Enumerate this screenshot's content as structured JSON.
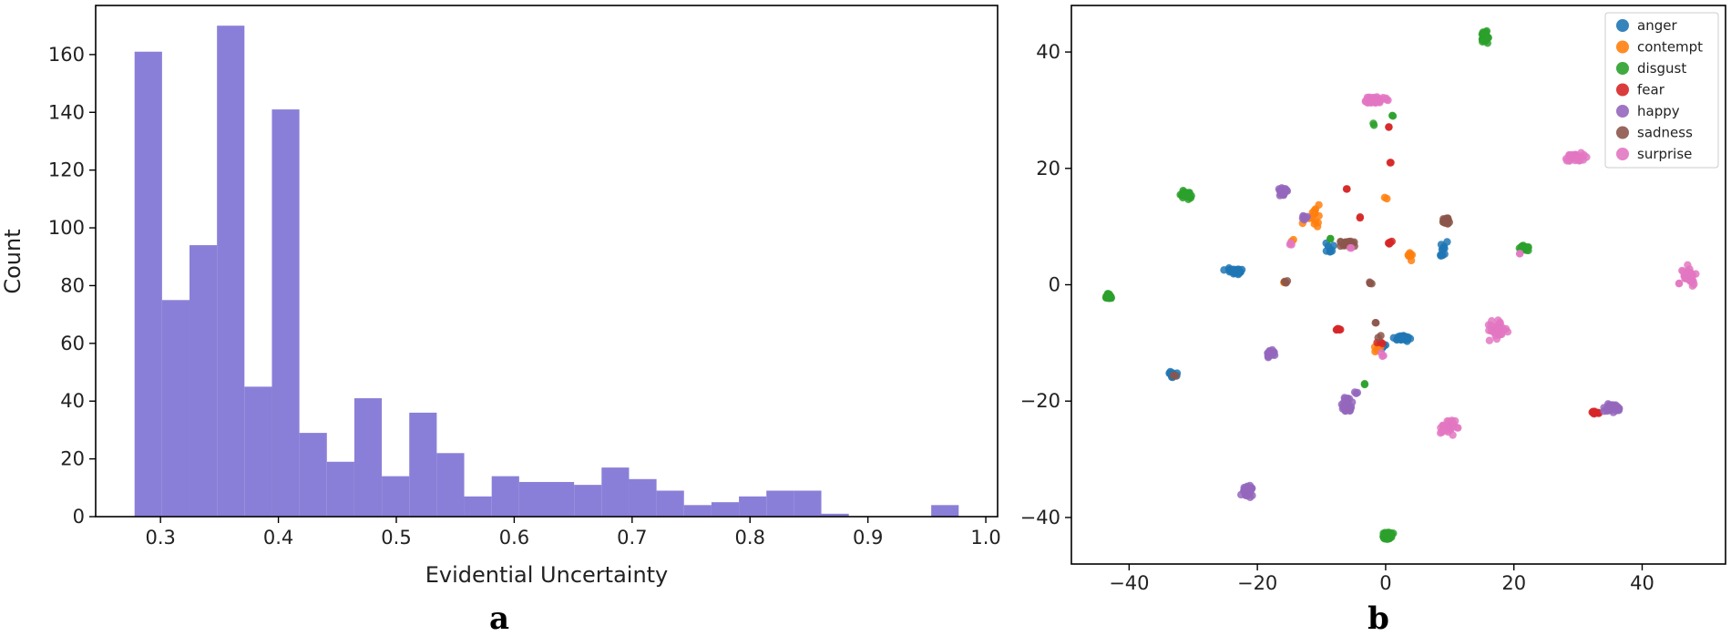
{
  "chart_data": [
    {
      "type": "bar",
      "panel_label": "a",
      "xlabel": "Evidential Uncertainty",
      "ylabel": "Count",
      "bar_color": "#8a7fd8",
      "bin_edges": [
        0.278,
        0.3013,
        0.3246,
        0.3479,
        0.3712,
        0.3945,
        0.4178,
        0.4411,
        0.4644,
        0.4877,
        0.511,
        0.5343,
        0.5576,
        0.5809,
        0.6042,
        0.6275,
        0.6508,
        0.6741,
        0.6974,
        0.7207,
        0.744,
        0.7673,
        0.7906,
        0.8139,
        0.8372,
        0.8605,
        0.8838,
        0.9071,
        0.9304,
        0.9537,
        0.977
      ],
      "values": [
        161,
        75,
        94,
        170,
        45,
        141,
        29,
        19,
        41,
        14,
        36,
        22,
        7,
        14,
        12,
        12,
        11,
        17,
        13,
        9,
        4,
        5,
        7,
        9,
        9,
        1,
        0,
        0,
        0,
        4
      ],
      "xlim": [
        0.245,
        1.01
      ],
      "ylim": [
        0,
        177
      ],
      "xticks": [
        0.3,
        0.4,
        0.5,
        0.6,
        0.7,
        0.8,
        0.9,
        1.0
      ],
      "xtick_labels": [
        "0.3",
        "0.4",
        "0.5",
        "0.6",
        "0.7",
        "0.8",
        "0.9",
        "1.0"
      ],
      "yticks": [
        0,
        20,
        40,
        60,
        80,
        100,
        120,
        140,
        160
      ],
      "ytick_labels": [
        "0",
        "20",
        "40",
        "60",
        "80",
        "100",
        "120",
        "140",
        "160"
      ]
    },
    {
      "type": "scatter",
      "panel_label": "b",
      "xlim": [
        -49,
        53
      ],
      "ylim": [
        -48,
        48
      ],
      "xticks": [
        -40,
        -20,
        0,
        20,
        40
      ],
      "xtick_labels": [
        "−40",
        "−20",
        "0",
        "20",
        "40"
      ],
      "yticks": [
        -40,
        -20,
        0,
        20,
        40
      ],
      "ytick_labels": [
        "−40",
        "−20",
        "0",
        "20",
        "40"
      ],
      "legend_position": "top-right",
      "series": [
        {
          "name": "anger",
          "color": "#1f77b4",
          "clusters": [
            [
              -23.5,
              2.3,
              1.3,
              0.5,
              40
            ],
            [
              -33.2,
              -15.4,
              0.6,
              0.5,
              14
            ],
            [
              2.5,
              -9.2,
              1.3,
              0.4,
              30
            ],
            [
              9,
              6.3,
              0.7,
              1.2,
              8
            ],
            [
              -8.5,
              6.5,
              0.7,
              1.4,
              8
            ],
            [
              8.8,
              5,
              0.3,
              0.3,
              3
            ],
            [
              -0.5,
              -10.4,
              0.6,
              0.6,
              5
            ]
          ]
        },
        {
          "name": "contempt",
          "color": "#ff7f0e",
          "clusters": [
            [
              -11,
              11.5,
              1.5,
              1.8,
              14
            ],
            [
              3.7,
              5,
              0.6,
              1,
              8
            ],
            [
              -1.2,
              -10.8,
              0.8,
              0.6,
              6
            ],
            [
              0,
              15,
              0.3,
              0.3,
              2
            ],
            [
              -16,
              0.5,
              0.3,
              0.3,
              2
            ],
            [
              -14.5,
              7.5,
              0.3,
              0.3,
              2
            ]
          ]
        },
        {
          "name": "disgust",
          "color": "#2ca02c",
          "clusters": [
            [
              15.5,
              42.5,
              0.5,
              0.9,
              40
            ],
            [
              -31,
              15.4,
              0.8,
              0.6,
              35
            ],
            [
              -43.2,
              -2,
              0.5,
              0.4,
              35
            ],
            [
              21.5,
              6.3,
              0.7,
              0.4,
              30
            ],
            [
              0.2,
              -43.2,
              0.8,
              0.6,
              40
            ],
            [
              -2,
              27.5,
              0.3,
              0.3,
              2
            ],
            [
              -8.5,
              8,
              0.3,
              0.3,
              2
            ],
            [
              -3.5,
              -17,
              0.3,
              0.3,
              2
            ],
            [
              1,
              29,
              0.3,
              0.3,
              2
            ]
          ]
        },
        {
          "name": "fear",
          "color": "#d62728",
          "clusters": [
            [
              0.5,
              27,
              0.2,
              0.2,
              2
            ],
            [
              0.8,
              21,
              0.2,
              0.2,
              2
            ],
            [
              -6,
              16.5,
              0.2,
              0.2,
              2
            ],
            [
              -4,
              11.5,
              0.2,
              0.2,
              2
            ],
            [
              0.5,
              7.2,
              0.6,
              0.3,
              6
            ],
            [
              -7.5,
              -7.8,
              0.5,
              0.3,
              6
            ],
            [
              33,
              -22,
              0.8,
              0.3,
              10
            ],
            [
              -1,
              -10,
              0.4,
              0.4,
              3
            ]
          ]
        },
        {
          "name": "happy",
          "color": "#9467bd",
          "clusters": [
            [
              -16,
              16,
              0.8,
              0.7,
              25
            ],
            [
              -21.5,
              -35.5,
              0.9,
              1,
              40
            ],
            [
              -18,
              -11.8,
              0.6,
              0.6,
              25
            ],
            [
              -6,
              -20.5,
              0.7,
              1.4,
              35
            ],
            [
              35.3,
              -21.2,
              1,
              0.8,
              40
            ],
            [
              -12.5,
              11.5,
              0.5,
              0.5,
              8
            ],
            [
              -4.5,
              -18.5,
              0.3,
              0.3,
              3
            ]
          ]
        },
        {
          "name": "sadness",
          "color": "#8c564b",
          "clusters": [
            [
              9.5,
              11,
              0.6,
              0.7,
              25
            ],
            [
              -6,
              7,
              1.5,
              0.6,
              20
            ],
            [
              -15.5,
              0.5,
              0.4,
              0.3,
              4
            ],
            [
              -2.5,
              0.3,
              0.4,
              0.3,
              4
            ],
            [
              -1.5,
              -6.5,
              0.2,
              0.2,
              2
            ],
            [
              -32.8,
              -15.8,
              0.3,
              0.3,
              2
            ],
            [
              -1,
              -9,
              0.3,
              0.3,
              2
            ]
          ]
        },
        {
          "name": "surprise",
          "color": "#e377c2",
          "clusters": [
            [
              -1.5,
              31.7,
              2,
              0.6,
              50
            ],
            [
              29.5,
              22,
              1.4,
              0.8,
              45
            ],
            [
              47,
              1.5,
              1.4,
              1.3,
              40
            ],
            [
              17.5,
              -7.8,
              1.5,
              1.4,
              45
            ],
            [
              10,
              -24.5,
              1.3,
              1.3,
              40
            ],
            [
              -14.5,
              7.2,
              0.4,
              0.3,
              3
            ],
            [
              21,
              5.5,
              0.3,
              0.3,
              2
            ],
            [
              -0.5,
              -12,
              0.3,
              0.3,
              3
            ],
            [
              -5.5,
              6.5,
              0.3,
              0.3,
              2
            ]
          ]
        }
      ]
    }
  ]
}
